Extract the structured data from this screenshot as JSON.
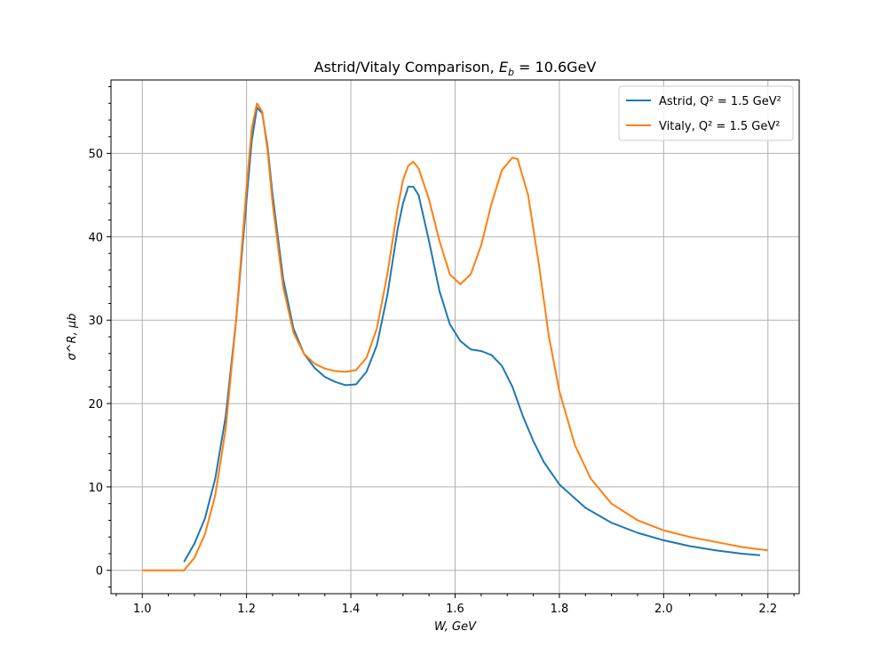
{
  "chart_data": {
    "type": "line",
    "title": "Astrid/Vitaly Comparison, E_b = 10.6GeV",
    "title_parts": {
      "main": "Astrid/Vitaly Comparison, ",
      "sym": "E",
      "sub": "b",
      "rest": " = 10.6GeV"
    },
    "xlabel": "W, GeV",
    "ylabel": "σ^R, μb",
    "xlim": [
      0.94,
      2.26
    ],
    "ylim": [
      -2.8,
      58.8
    ],
    "xticks": [
      1.0,
      1.2,
      1.4,
      1.6,
      1.8,
      2.0,
      2.2
    ],
    "xtick_labels": [
      "1.0",
      "1.2",
      "1.4",
      "1.6",
      "1.8",
      "2.0",
      "2.2"
    ],
    "yticks": [
      0,
      10,
      20,
      30,
      40,
      50
    ],
    "ytick_labels": [
      "0",
      "10",
      "20",
      "30",
      "40",
      "50"
    ],
    "grid": true,
    "legend_position": "top-right",
    "series": [
      {
        "name": "Astrid, Q² = 1.5 GeV²",
        "color": "#1f77b4",
        "points": [
          [
            1.08,
            1.0
          ],
          [
            1.1,
            3.2
          ],
          [
            1.12,
            6.2
          ],
          [
            1.14,
            11.0
          ],
          [
            1.16,
            18.5
          ],
          [
            1.18,
            30.0
          ],
          [
            1.2,
            44.5
          ],
          [
            1.21,
            51.5
          ],
          [
            1.22,
            55.5
          ],
          [
            1.23,
            54.8
          ],
          [
            1.24,
            51.0
          ],
          [
            1.25,
            45.0
          ],
          [
            1.27,
            35.0
          ],
          [
            1.29,
            29.0
          ],
          [
            1.31,
            26.0
          ],
          [
            1.33,
            24.3
          ],
          [
            1.35,
            23.2
          ],
          [
            1.37,
            22.6
          ],
          [
            1.39,
            22.2
          ],
          [
            1.41,
            22.3
          ],
          [
            1.43,
            23.8
          ],
          [
            1.45,
            27.0
          ],
          [
            1.47,
            33.0
          ],
          [
            1.49,
            41.0
          ],
          [
            1.5,
            44.0
          ],
          [
            1.51,
            46.0
          ],
          [
            1.52,
            46.0
          ],
          [
            1.53,
            45.0
          ],
          [
            1.55,
            39.5
          ],
          [
            1.57,
            33.5
          ],
          [
            1.59,
            29.5
          ],
          [
            1.61,
            27.5
          ],
          [
            1.63,
            26.5
          ],
          [
            1.65,
            26.3
          ],
          [
            1.67,
            25.8
          ],
          [
            1.69,
            24.5
          ],
          [
            1.71,
            22.0
          ],
          [
            1.73,
            18.5
          ],
          [
            1.75,
            15.5
          ],
          [
            1.77,
            13.0
          ],
          [
            1.8,
            10.3
          ],
          [
            1.85,
            7.5
          ],
          [
            1.9,
            5.7
          ],
          [
            1.95,
            4.5
          ],
          [
            2.0,
            3.6
          ],
          [
            2.05,
            2.9
          ],
          [
            2.1,
            2.4
          ],
          [
            2.15,
            2.0
          ],
          [
            2.185,
            1.8
          ]
        ]
      },
      {
        "name": "Vitaly, Q² = 1.5 GeV²",
        "color": "#ff7f0e",
        "points": [
          [
            1.0,
            0.0
          ],
          [
            1.04,
            0.0
          ],
          [
            1.08,
            0.0
          ],
          [
            1.1,
            1.5
          ],
          [
            1.12,
            4.3
          ],
          [
            1.14,
            9.0
          ],
          [
            1.16,
            17.0
          ],
          [
            1.18,
            30.0
          ],
          [
            1.2,
            46.0
          ],
          [
            1.21,
            53.0
          ],
          [
            1.22,
            56.0
          ],
          [
            1.23,
            55.0
          ],
          [
            1.24,
            50.5
          ],
          [
            1.25,
            44.0
          ],
          [
            1.27,
            34.0
          ],
          [
            1.29,
            28.5
          ],
          [
            1.31,
            26.0
          ],
          [
            1.33,
            24.8
          ],
          [
            1.35,
            24.2
          ],
          [
            1.37,
            23.9
          ],
          [
            1.39,
            23.8
          ],
          [
            1.41,
            24.0
          ],
          [
            1.43,
            25.5
          ],
          [
            1.45,
            29.0
          ],
          [
            1.47,
            35.5
          ],
          [
            1.49,
            43.5
          ],
          [
            1.5,
            46.8
          ],
          [
            1.51,
            48.5
          ],
          [
            1.52,
            49.0
          ],
          [
            1.53,
            48.2
          ],
          [
            1.55,
            44.5
          ],
          [
            1.57,
            39.5
          ],
          [
            1.59,
            35.5
          ],
          [
            1.61,
            34.3
          ],
          [
            1.63,
            35.5
          ],
          [
            1.65,
            39.0
          ],
          [
            1.67,
            44.0
          ],
          [
            1.69,
            48.0
          ],
          [
            1.71,
            49.5
          ],
          [
            1.72,
            49.3
          ],
          [
            1.74,
            45.0
          ],
          [
            1.76,
            37.0
          ],
          [
            1.78,
            28.0
          ],
          [
            1.8,
            21.5
          ],
          [
            1.83,
            15.0
          ],
          [
            1.86,
            11.0
          ],
          [
            1.9,
            8.0
          ],
          [
            1.95,
            6.0
          ],
          [
            2.0,
            4.8
          ],
          [
            2.05,
            4.0
          ],
          [
            2.1,
            3.4
          ],
          [
            2.15,
            2.8
          ],
          [
            2.2,
            2.4
          ]
        ]
      }
    ]
  }
}
